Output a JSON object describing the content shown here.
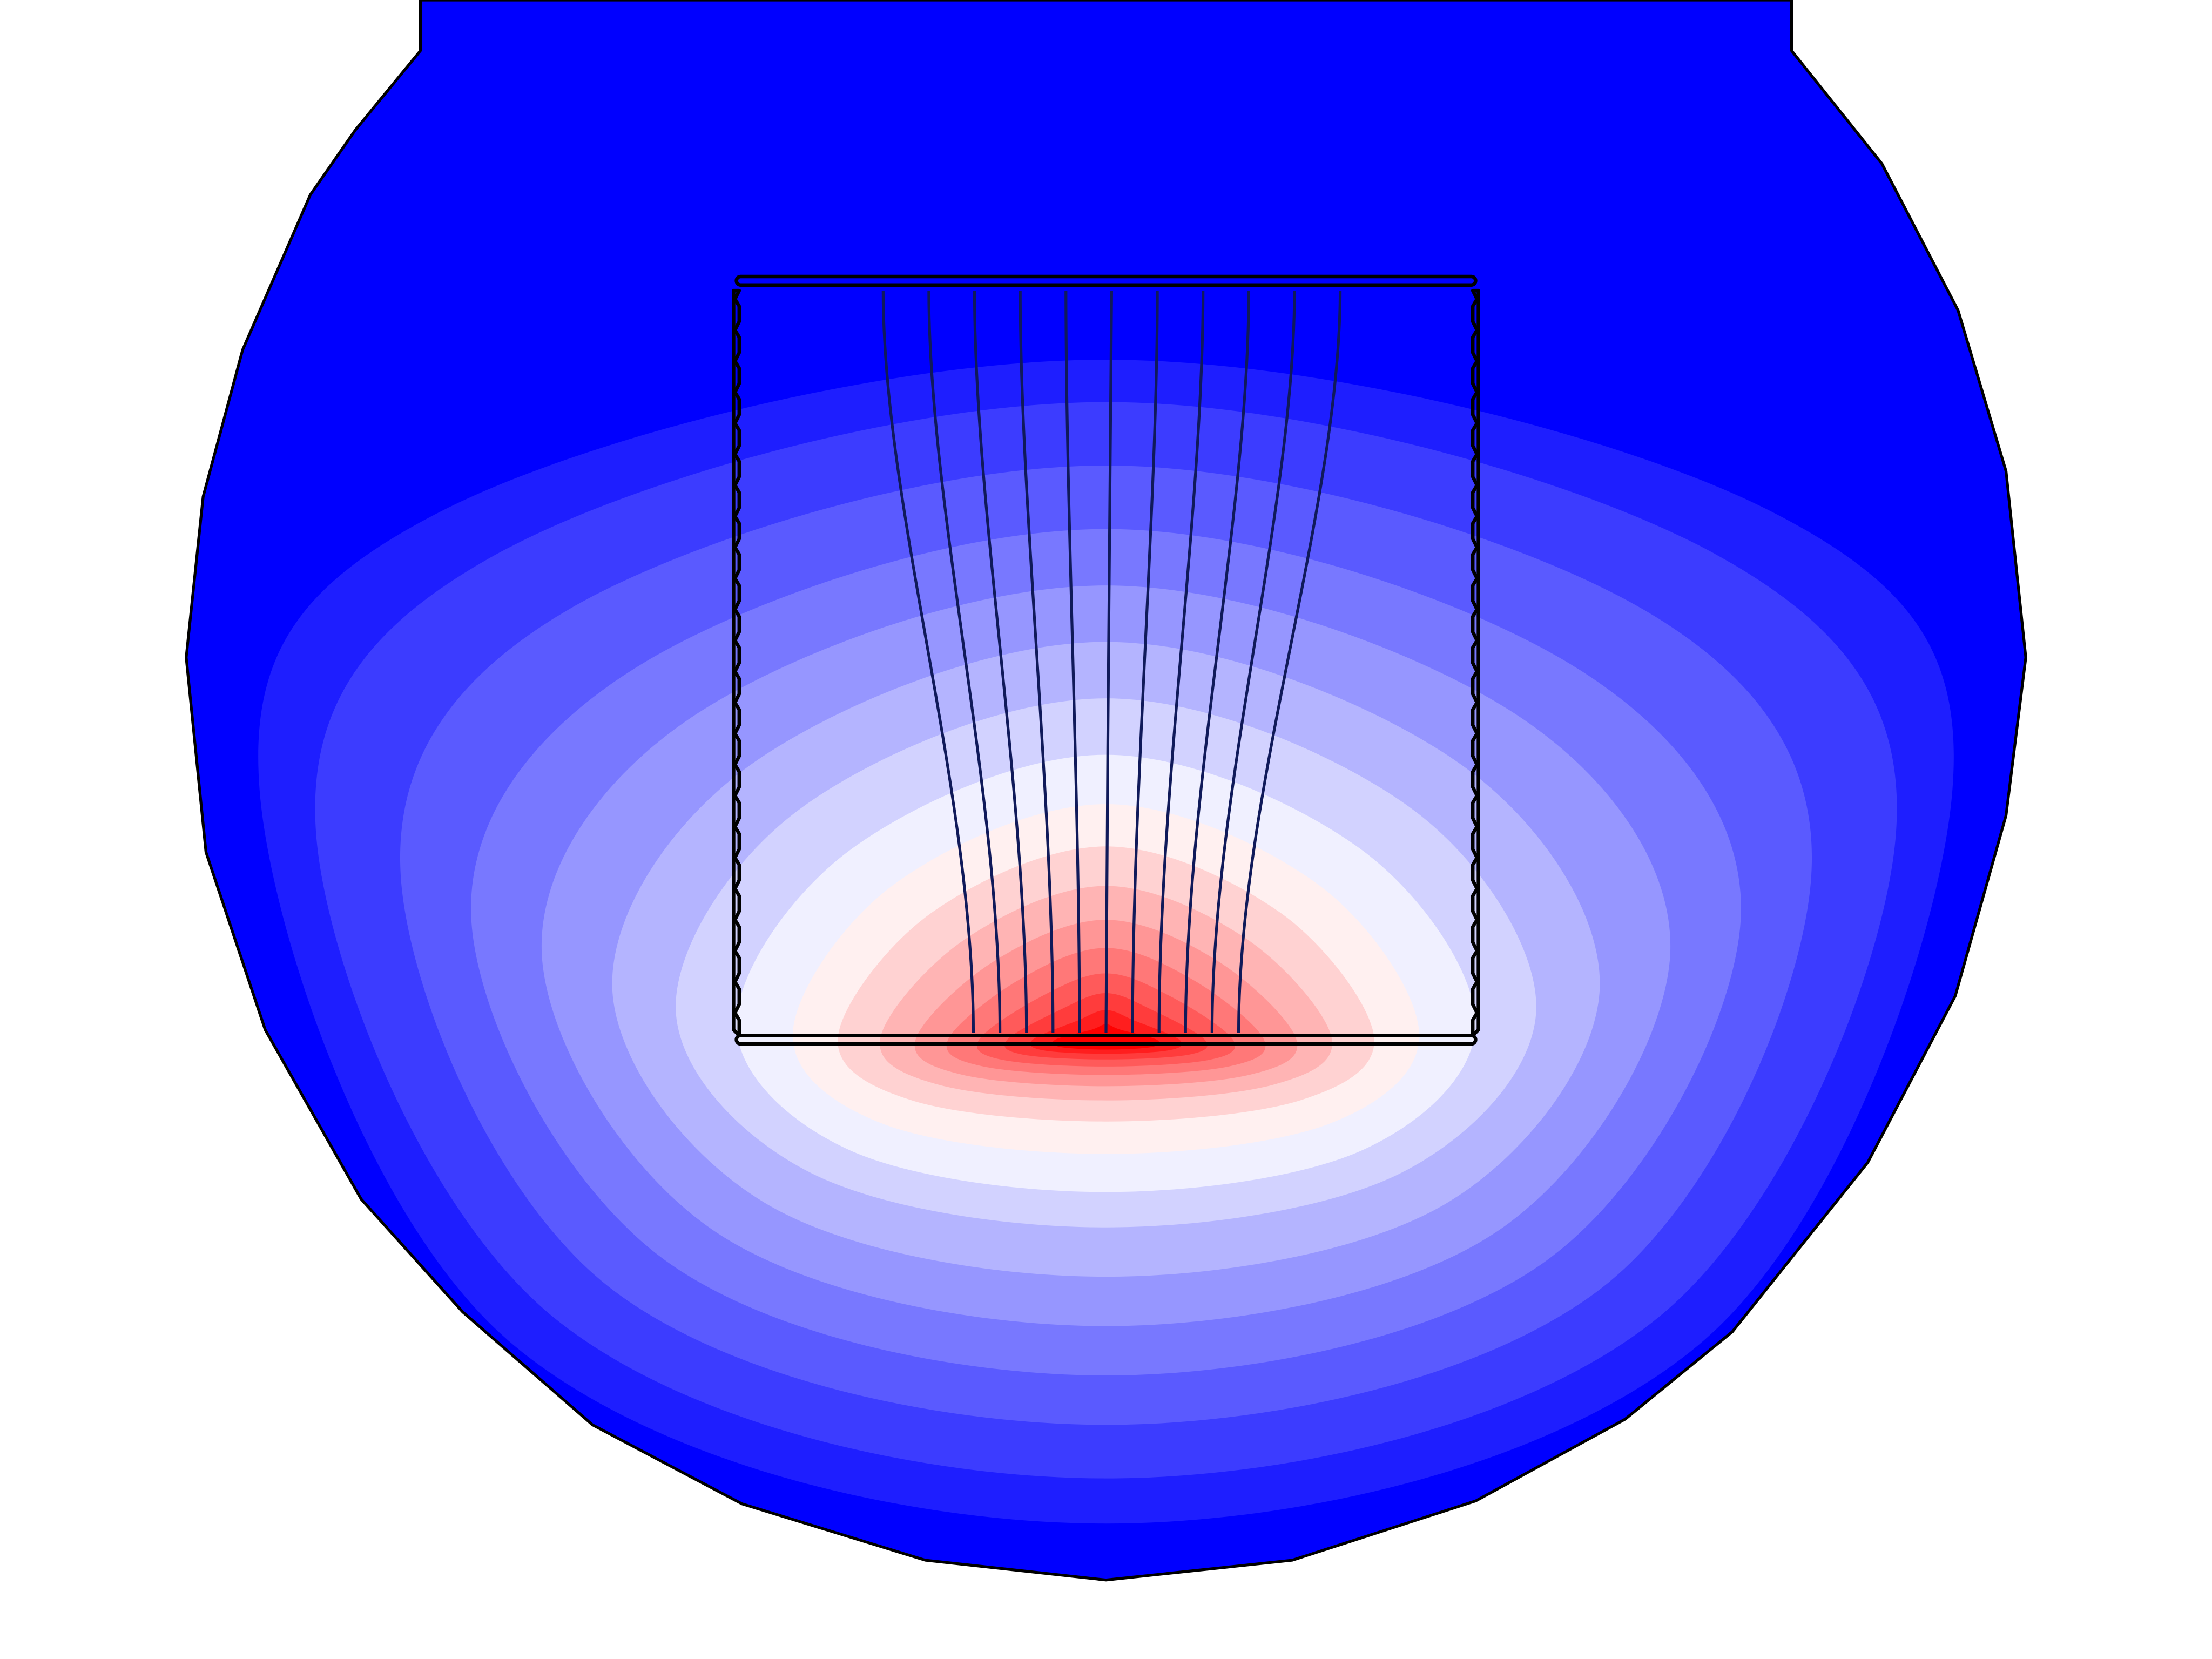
{
  "figure": {
    "colormap": {
      "low_color": "#0000ff",
      "mid_color": "#ffffff",
      "high_color": "#ff0000",
      "levels": 18
    },
    "outline_color": "#000000",
    "streamline_color": "#101a5a",
    "streamline_count": 11,
    "plate_count": 2,
    "side_wall_count": 2
  }
}
